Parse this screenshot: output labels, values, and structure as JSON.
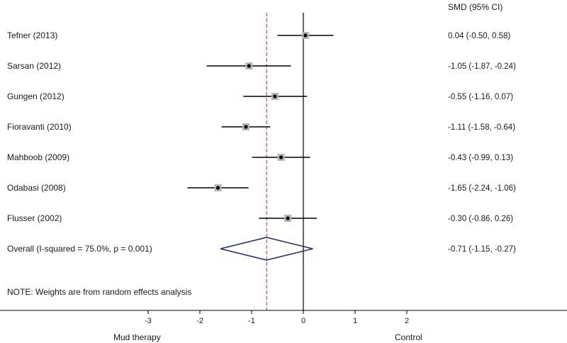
{
  "chart_data": {
    "type": "forest",
    "effect_column_header": "SMD (95% CI)",
    "studies": [
      {
        "label": "Tefner (2013)",
        "smd": 0.04,
        "lower": -0.5,
        "upper": 0.58,
        "ci_text": "0.04 (-0.50, 0.58)"
      },
      {
        "label": "Sarsan (2012)",
        "smd": -1.05,
        "lower": -1.87,
        "upper": -0.24,
        "ci_text": "-1.05 (-1.87, -0.24)"
      },
      {
        "label": "Gungen (2012)",
        "smd": -0.55,
        "lower": -1.16,
        "upper": 0.07,
        "ci_text": "-0.55 (-1.16, 0.07)"
      },
      {
        "label": "Fioravanti (2010)",
        "smd": -1.11,
        "lower": -1.58,
        "upper": -0.64,
        "ci_text": "-1.11 (-1.58, -0.64)"
      },
      {
        "label": "Mahboob (2009)",
        "smd": -0.43,
        "lower": -0.99,
        "upper": 0.13,
        "ci_text": "-0.43 (-0.99, 0.13)"
      },
      {
        "label": "Odabasi (2008)",
        "smd": -1.65,
        "lower": -2.24,
        "upper": -1.06,
        "ci_text": "-1.65 (-2.24, -1.06)"
      },
      {
        "label": "Flusser (2002)",
        "smd": -0.3,
        "lower": -0.86,
        "upper": 0.26,
        "ci_text": "-0.30 (-0.86, 0.26)"
      }
    ],
    "overall": {
      "label": "Overall  (I-squared = 75.0%, p = 0.001)",
      "smd": -0.71,
      "lower": -1.15,
      "upper": -0.27,
      "ci_text": "-0.71 (-1.15, -0.27)"
    },
    "note": "NOTE: Weights are from random effects analysis",
    "x_ticks": [
      -3,
      -2,
      -1,
      0,
      1,
      2
    ],
    "x_tick_labels": [
      "-3",
      "-2",
      "-1",
      "0",
      "1",
      "2"
    ],
    "xlim": [
      -3,
      2
    ],
    "null_line": 0,
    "favours_left": "Mud therapy",
    "favours_right": "Control",
    "colors": {
      "diamond": "#1f2f7a",
      "overall_line": "#c0392b",
      "box": "#b5b5b5",
      "axis": "#000000"
    }
  }
}
